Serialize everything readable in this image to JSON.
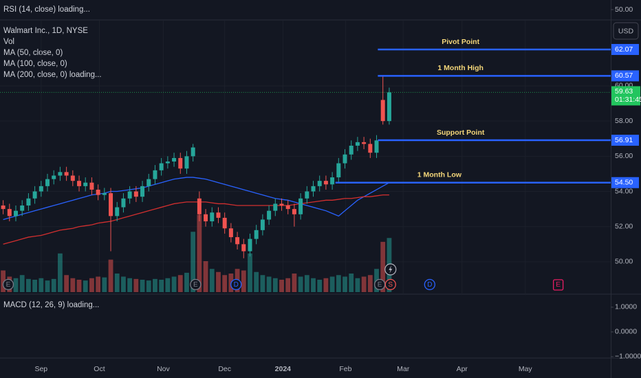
{
  "chart_data": {
    "type": "candlestick",
    "title": "Walmart Inc., 1D, NYSE",
    "indicators": [
      "Vol",
      "MA (50, close, 0)",
      "MA (100, close, 0)",
      "MA (200, close, 0) loading..."
    ],
    "currency": "USD",
    "rsi": {
      "title": "RSI (14, close) loading...",
      "ylim": [
        48.4,
        51.6
      ],
      "yticks": [
        {
          "value": 50,
          "label": "50.00"
        }
      ]
    },
    "macd": {
      "title": "MACD (12, 26, 9) loading...",
      "ylim": [
        -1.03,
        1.47
      ],
      "yticks": [
        {
          "value": 1,
          "label": "1.0000"
        },
        {
          "value": 0,
          "label": "0.0000"
        },
        {
          "value": -1,
          "label": "−1.0000"
        }
      ]
    },
    "xlim": [
      -0.5,
      96
    ],
    "xticks": [
      {
        "value": 6,
        "label": "Sep"
      },
      {
        "value": 15.2,
        "label": "Oct"
      },
      {
        "value": 25.3,
        "label": "Nov"
      },
      {
        "value": 35,
        "label": "Dec"
      },
      {
        "value": 44.2,
        "label": "2024"
      },
      {
        "value": 54.1,
        "label": "Feb"
      },
      {
        "value": 63.2,
        "label": "Mar"
      },
      {
        "value": 72.5,
        "label": "Apr"
      },
      {
        "value": 82.5,
        "label": "May"
      }
    ],
    "ylim": [
      48.16,
      63.71
    ],
    "yticks": [
      {
        "value": 50,
        "label": "50.00"
      },
      {
        "value": 52,
        "label": "52.00"
      },
      {
        "value": 54,
        "label": "54.00"
      },
      {
        "value": 56,
        "label": "56.00"
      },
      {
        "value": 58,
        "label": "58.00"
      },
      {
        "value": 60,
        "label": "60.00"
      }
    ],
    "grid": true,
    "up_color": "#26a69a",
    "down_color": "#ef5350",
    "open": [
      53.2,
      53.0,
      52.6,
      52.9,
      53.2,
      53.6,
      54.0,
      54.3,
      54.7,
      54.9,
      55.1,
      54.9,
      54.6,
      54.3,
      54.5,
      54.1,
      53.8,
      53.9,
      52.6,
      53.1,
      53.6,
      54.0,
      53.7,
      54.3,
      54.7,
      55.2,
      55.6,
      55.7,
      55.9,
      55.3,
      56.0,
      53.6,
      52.7,
      52.3,
      52.8,
      52.5,
      51.9,
      51.4,
      51.0,
      50.6,
      51.3,
      51.8,
      52.4,
      52.9,
      53.3,
      53.2,
      53.0,
      52.7,
      53.6,
      54.0,
      54.3,
      54.6,
      54.4,
      54.8,
      55.6,
      56.1,
      56.6,
      56.8,
      56.7,
      56.2,
      59.2,
      58.0
    ],
    "high": [
      53.5,
      53.3,
      53.2,
      53.5,
      53.9,
      54.3,
      54.6,
      55.0,
      55.2,
      55.4,
      55.4,
      55.2,
      54.9,
      54.8,
      54.8,
      54.4,
      54.2,
      54.2,
      53.4,
      53.9,
      54.3,
      54.3,
      54.6,
      55.0,
      55.5,
      55.9,
      56.0,
      56.2,
      56.2,
      56.3,
      56.7,
      54.0,
      53.0,
      53.1,
      53.1,
      52.8,
      52.2,
      51.7,
      51.3,
      51.6,
      52.1,
      52.7,
      53.2,
      53.6,
      53.6,
      53.5,
      53.3,
      53.9,
      54.3,
      54.6,
      54.9,
      54.9,
      55.1,
      55.9,
      56.4,
      56.9,
      57.1,
      57.1,
      57.0,
      57.2,
      60.57,
      59.9
    ],
    "low": [
      52.7,
      52.3,
      52.3,
      52.6,
      52.9,
      53.3,
      53.7,
      54.0,
      54.4,
      54.6,
      54.6,
      54.3,
      54.0,
      54.0,
      53.8,
      53.5,
      53.5,
      50.6,
      52.3,
      52.8,
      53.3,
      53.4,
      53.4,
      54.0,
      54.4,
      54.9,
      55.3,
      55.4,
      55.0,
      55.0,
      55.7,
      52.3,
      52.0,
      52.0,
      52.2,
      51.6,
      51.1,
      50.7,
      50.2,
      50.3,
      51.0,
      51.5,
      52.1,
      52.6,
      52.9,
      52.7,
      52.0,
      52.4,
      53.3,
      53.7,
      54.0,
      54.1,
      54.1,
      54.5,
      55.3,
      55.8,
      56.3,
      56.4,
      55.9,
      55.9,
      57.8,
      57.8
    ],
    "close": [
      53.0,
      52.6,
      52.9,
      53.2,
      53.6,
      54.0,
      54.3,
      54.7,
      54.9,
      55.1,
      54.9,
      54.6,
      54.3,
      54.5,
      54.1,
      53.8,
      53.9,
      52.6,
      53.1,
      53.6,
      54.0,
      53.7,
      54.3,
      54.7,
      55.2,
      55.6,
      55.7,
      55.9,
      55.3,
      56.0,
      56.5,
      52.7,
      52.3,
      52.8,
      52.5,
      51.9,
      51.4,
      51.0,
      50.6,
      51.3,
      51.8,
      52.4,
      52.9,
      53.3,
      53.2,
      53.0,
      52.7,
      53.6,
      54.0,
      54.3,
      54.6,
      54.4,
      54.8,
      55.6,
      56.1,
      56.6,
      56.8,
      56.7,
      56.2,
      56.9,
      58.0,
      59.63
    ],
    "countdown": "01:31:45",
    "last_color": "#22c55e",
    "volume": {
      "ylim": [
        0,
        120
      ],
      "values": [
        28,
        20,
        18,
        22,
        17,
        16,
        18,
        15,
        17,
        50,
        22,
        18,
        16,
        15,
        18,
        20,
        19,
        42,
        24,
        20,
        18,
        17,
        16,
        15,
        17,
        16,
        18,
        20,
        22,
        25,
        78,
        100,
        40,
        30,
        26,
        22,
        24,
        30,
        28,
        50,
        26,
        22,
        20,
        18,
        16,
        18,
        24,
        20,
        22,
        18,
        16,
        18,
        20,
        22,
        20,
        24,
        18,
        20,
        22,
        30,
        65,
        70
      ]
    },
    "series": [
      {
        "color": "#2962ff",
        "values": [
          52.4,
          52.5,
          52.6,
          52.7,
          52.8,
          52.9,
          53.0,
          53.1,
          53.2,
          53.3,
          53.4,
          53.5,
          53.6,
          53.7,
          53.8,
          53.85,
          53.9,
          54.0,
          54.0,
          54.05,
          54.1,
          54.15,
          54.2,
          54.3,
          54.4,
          54.5,
          54.6,
          54.7,
          54.75,
          54.8,
          54.8,
          54.75,
          54.7,
          54.6,
          54.5,
          54.4,
          54.3,
          54.2,
          54.1,
          54.0,
          53.9,
          53.8,
          53.7,
          53.6,
          53.55,
          53.5,
          53.4,
          53.3,
          53.2,
          53.1,
          53.0,
          52.9,
          52.75,
          52.6,
          52.9,
          53.2,
          53.5,
          53.7,
          53.9,
          54.1,
          54.3,
          54.5
        ]
      },
      {
        "color": "#d32f2f",
        "values": [
          51.0,
          51.1,
          51.2,
          51.3,
          51.4,
          51.45,
          51.5,
          51.6,
          51.7,
          51.8,
          51.85,
          51.9,
          52.0,
          52.05,
          52.1,
          52.2,
          52.25,
          52.3,
          52.4,
          52.5,
          52.6,
          52.7,
          52.8,
          52.9,
          53.0,
          53.1,
          53.2,
          53.3,
          53.35,
          53.4,
          53.4,
          53.4,
          53.4,
          53.35,
          53.3,
          53.3,
          53.25,
          53.2,
          53.2,
          53.2,
          53.2,
          53.2,
          53.2,
          53.2,
          53.2,
          53.2,
          53.25,
          53.3,
          53.35,
          53.4,
          53.45,
          53.5,
          53.5,
          53.55,
          53.6,
          53.6,
          53.65,
          53.7,
          53.7,
          53.75,
          53.8,
          53.8
        ]
      }
    ],
    "level_color": "#2962ff",
    "levels": [
      {
        "name": "Pivot Point",
        "value": 62.07,
        "from": 59.2
      },
      {
        "name": "1 Month High",
        "value": 60.57,
        "from": 59.2
      },
      {
        "name": "Support Point",
        "value": 56.91,
        "from": 59.2
      },
      {
        "name": "1 Month Low",
        "value": 54.5,
        "value_label": "54.50",
        "from": 52.5
      }
    ],
    "events": [
      {
        "label": "E",
        "x": 0.8,
        "color": "#787b86"
      },
      {
        "label": "E",
        "x": 30.4,
        "color": "#787b86"
      },
      {
        "label": "D",
        "x": 36.8,
        "color": "#2962ff"
      },
      {
        "label": "E",
        "x": 59.5,
        "color": "#787b86"
      },
      {
        "label": "S",
        "x": 61.2,
        "color": "#ef5350"
      },
      {
        "label": "D",
        "x": 67.4,
        "color": "#2962ff"
      },
      {
        "label": "E",
        "x": 87.7,
        "color": "#e91e63"
      }
    ]
  }
}
